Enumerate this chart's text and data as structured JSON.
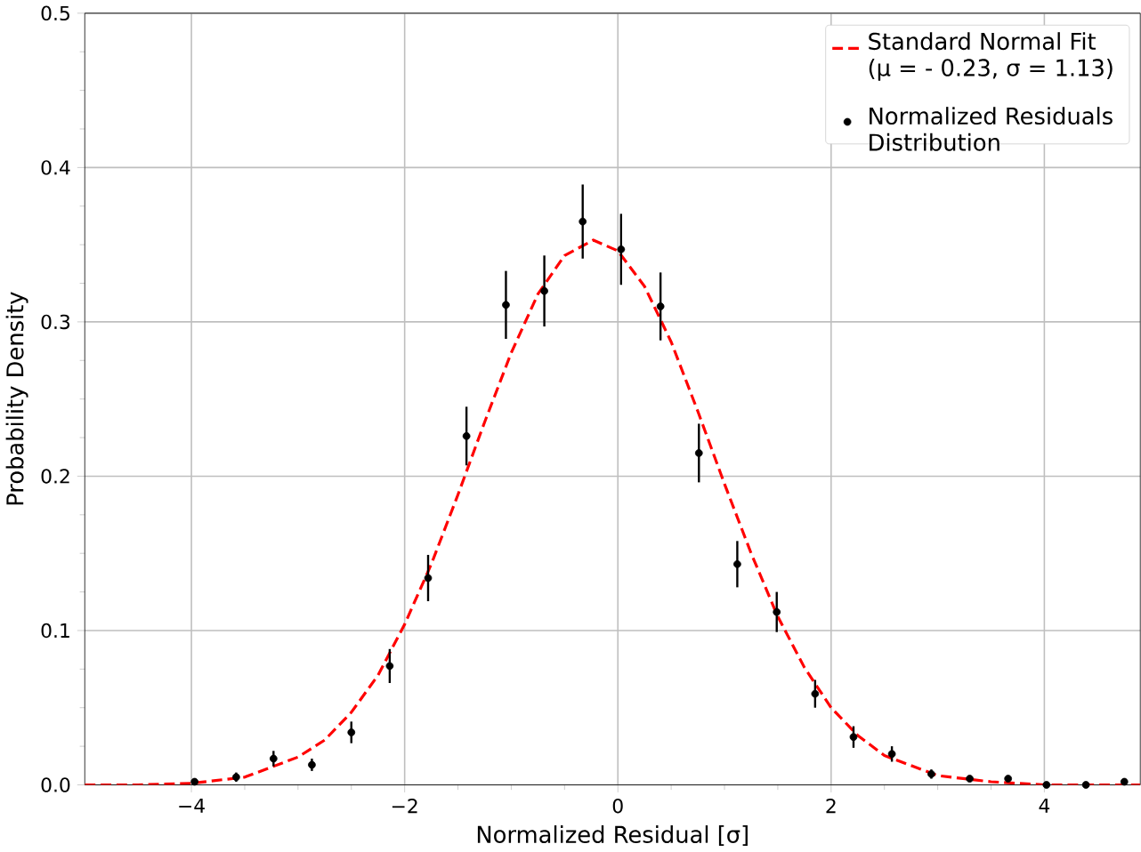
{
  "chart_data": {
    "type": "scatter",
    "xlabel": "Normalized Residual [σ]",
    "ylabel": "Probability Density",
    "xlim": [
      -5,
      4.9
    ],
    "ylim": [
      0,
      0.5
    ],
    "xticks": [
      {
        "value": -4,
        "label": "−4"
      },
      {
        "value": -2,
        "label": "−2"
      },
      0,
      2,
      4
    ],
    "yticks": [
      {
        "value": 0,
        "label": "0.0"
      },
      0.1,
      0.2,
      0.3,
      0.4,
      0.5
    ],
    "grid": true,
    "legend": "top right",
    "series": [
      {
        "name": "Standard Normal Fit (μ = - 0.23, σ = 1.13)",
        "type": "line",
        "line_style": "dashed",
        "marker": "none",
        "color": "#ff0000",
        "x": [
          -5,
          -4.5,
          -4,
          -3.5,
          -3,
          -2.75,
          -2.5,
          -2.25,
          -2,
          -1.75,
          -1.5,
          -1.25,
          -1,
          -0.75,
          -0.5,
          -0.23,
          0,
          0.25,
          0.5,
          0.75,
          1,
          1.25,
          1.5,
          1.75,
          2,
          2.25,
          2.5,
          3,
          3.5,
          4,
          4.5,
          4.9
        ],
        "values": [
          0.0,
          0.0,
          0.001,
          0.005,
          0.018,
          0.029,
          0.047,
          0.071,
          0.104,
          0.143,
          0.188,
          0.235,
          0.28,
          0.318,
          0.343,
          0.353,
          0.346,
          0.323,
          0.287,
          0.242,
          0.195,
          0.15,
          0.109,
          0.076,
          0.05,
          0.032,
          0.019,
          0.006,
          0.002,
          0.0,
          0.0,
          0.0
        ]
      },
      {
        "name": "Normalized Residuals Distribution",
        "type": "scatter",
        "marker": "circle",
        "color": "#000000",
        "x": [
          -3.97,
          -3.58,
          -3.23,
          -2.87,
          -2.5,
          -2.14,
          -1.78,
          -1.42,
          -1.05,
          -0.69,
          -0.33,
          0.03,
          0.4,
          0.76,
          1.12,
          1.49,
          1.85,
          2.21,
          2.57,
          2.94,
          3.3,
          3.66,
          4.02,
          4.39,
          4.75
        ],
        "values": [
          0.002,
          0.005,
          0.017,
          0.013,
          0.034,
          0.077,
          0.134,
          0.226,
          0.311,
          0.32,
          0.365,
          0.347,
          0.31,
          0.215,
          0.143,
          0.112,
          0.059,
          0.031,
          0.02,
          0.007,
          0.004,
          0.004,
          0.0,
          0.0,
          0.002
        ],
        "errors": [
          0.002,
          0.003,
          0.005,
          0.004,
          0.007,
          0.011,
          0.015,
          0.019,
          0.022,
          0.023,
          0.024,
          0.023,
          0.022,
          0.019,
          0.015,
          0.013,
          0.009,
          0.007,
          0.005,
          0.003,
          0.002,
          0.002,
          null,
          null,
          0.002
        ]
      }
    ]
  }
}
